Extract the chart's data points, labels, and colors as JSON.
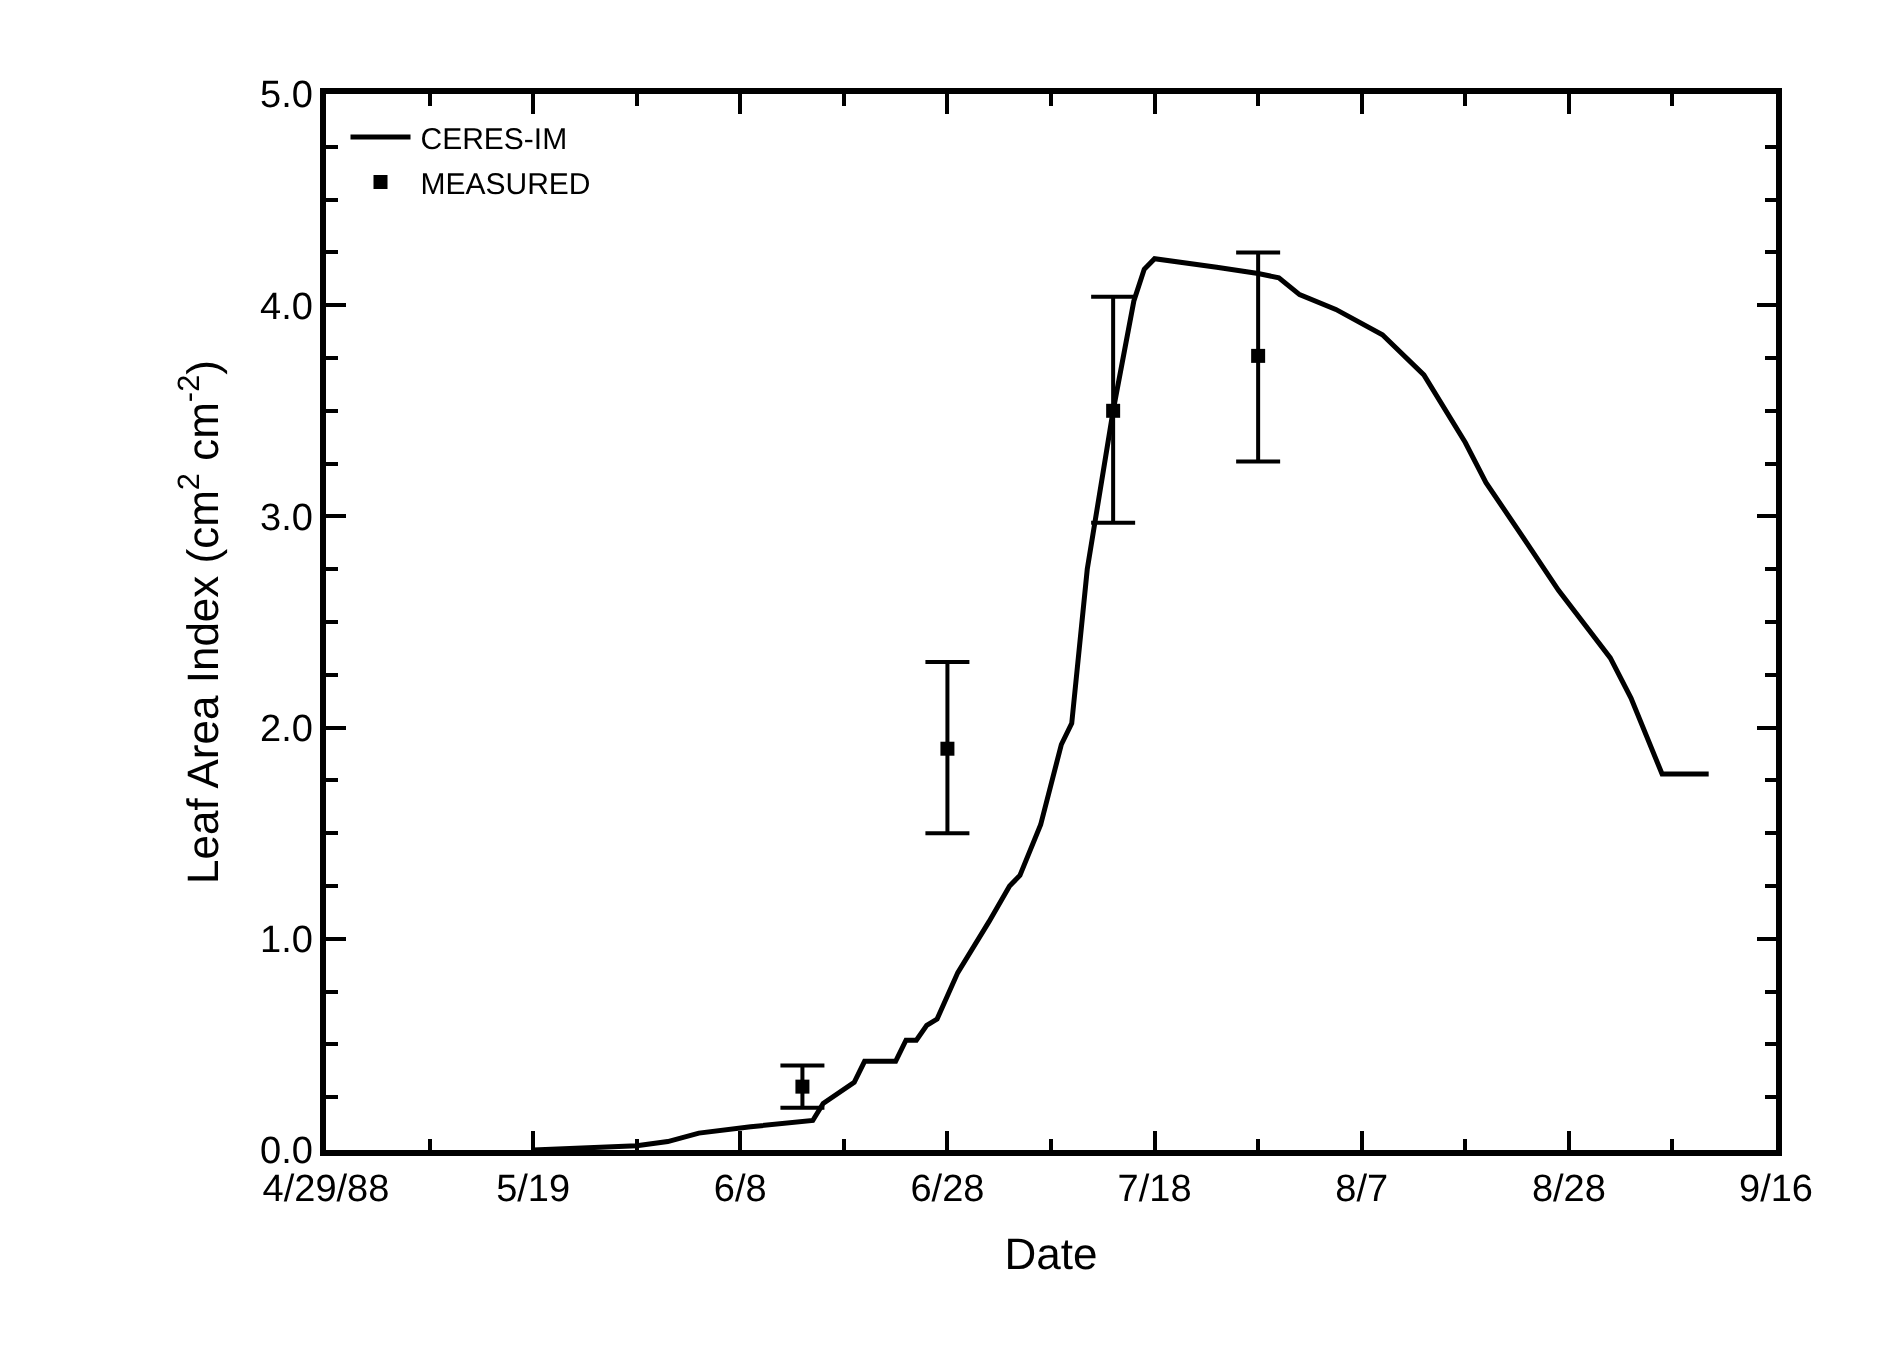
{
  "chart_data": {
    "type": "line",
    "xlabel": "Date",
    "ylabel": "Leaf Area Index (cm$^{2}$ cm$^{-2}$)",
    "xlim": [
      "1988-04-29",
      "1988-09-16"
    ],
    "xticks": [
      {
        "value": "1988-04-29",
        "label": "4/29/88"
      },
      {
        "value": "1988-05-09",
        "label": null
      },
      {
        "value": "1988-05-19",
        "label": "5/19"
      },
      {
        "value": "1988-05-29",
        "label": null
      },
      {
        "value": "1988-06-08",
        "label": "6/8"
      },
      {
        "value": "1988-06-18",
        "label": null
      },
      {
        "value": "1988-06-28",
        "label": "6/28"
      },
      {
        "value": "1988-07-08",
        "label": null
      },
      {
        "value": "1988-07-18",
        "label": "7/18"
      },
      {
        "value": "1988-07-28",
        "label": null
      },
      {
        "value": "1988-08-07",
        "label": "8/7"
      },
      {
        "value": "1988-08-17",
        "label": null
      },
      {
        "value": "1988-08-27",
        "label": "8/28"
      },
      {
        "value": "1988-09-06",
        "label": null
      },
      {
        "value": "1988-09-16",
        "label": "9/16"
      }
    ],
    "ylim": [
      0,
      5
    ],
    "yticks": [
      {
        "value": 0,
        "label": "0.0"
      },
      {
        "value": 0.25,
        "label": null
      },
      {
        "value": 0.5,
        "label": null
      },
      {
        "value": 0.75,
        "label": null
      },
      {
        "value": 1,
        "label": "1.0"
      },
      {
        "value": 1.25,
        "label": null
      },
      {
        "value": 1.5,
        "label": null
      },
      {
        "value": 1.75,
        "label": null
      },
      {
        "value": 2,
        "label": "2.0"
      },
      {
        "value": 2.25,
        "label": null
      },
      {
        "value": 2.5,
        "label": null
      },
      {
        "value": 2.75,
        "label": null
      },
      {
        "value": 3,
        "label": "3.0"
      },
      {
        "value": 3.25,
        "label": null
      },
      {
        "value": 3.5,
        "label": null
      },
      {
        "value": 3.75,
        "label": null
      },
      {
        "value": 4,
        "label": "4.0"
      },
      {
        "value": 4.25,
        "label": null
      },
      {
        "value": 4.5,
        "label": null
      },
      {
        "value": 4.75,
        "label": null
      },
      {
        "value": 5,
        "label": "5.0"
      }
    ],
    "legend": "top left",
    "series": [
      {
        "name": "CERES-IM",
        "color": "#000000",
        "marker": "none",
        "line_style": "solid",
        "x": [
          "1988-05-19",
          "1988-05-29",
          "1988-06-01",
          "1988-06-04",
          "1988-06-09",
          "1988-06-15",
          "1988-06-16",
          "1988-06-19",
          "1988-06-20",
          "1988-06-23",
          "1988-06-24",
          "1988-06-25",
          "1988-06-26",
          "1988-06-27",
          "1988-06-29",
          "1988-07-02",
          "1988-07-04",
          "1988-07-05",
          "1988-07-07",
          "1988-07-09",
          "1988-07-10",
          "1988-07-11T12:00",
          "1988-07-14",
          "1988-07-16",
          "1988-07-17",
          "1988-07-18",
          "1988-07-24",
          "1988-07-28",
          "1988-07-30",
          "1988-08-01",
          "1988-08-04T12:00",
          "1988-08-09",
          "1988-08-13",
          "1988-08-17",
          "1988-08-19",
          "1988-08-23",
          "1988-08-26",
          "1988-08-31",
          "1988-09-02",
          "1988-09-05",
          "1988-09-09T12:00"
        ],
        "values": [
          0,
          0.02,
          0.04,
          0.08,
          0.11,
          0.14,
          0.22,
          0.32,
          0.42,
          0.42,
          0.52,
          0.52,
          0.59,
          0.62,
          0.84,
          1.08,
          1.25,
          1.3,
          1.54,
          1.92,
          2.02,
          2.75,
          3.5,
          4.02,
          4.17,
          4.22,
          4.18,
          4.15,
          4.13,
          4.05,
          3.98,
          3.86,
          3.67,
          3.35,
          3.16,
          2.87,
          2.65,
          2.33,
          2.14,
          1.78,
          1.78
        ]
      },
      {
        "name": "MEASURED",
        "type": "scatter",
        "color": "#000000",
        "marker": "square",
        "x": [
          "1988-06-14",
          "1988-06-28",
          "1988-07-14",
          "1988-07-28"
        ],
        "values": [
          0.3,
          1.9,
          3.5,
          3.76
        ],
        "errors": [
          [
            0.2,
            0.4
          ],
          [
            1.5,
            2.31
          ],
          [
            2.97,
            4.04
          ],
          [
            3.26,
            4.25
          ]
        ]
      }
    ]
  }
}
